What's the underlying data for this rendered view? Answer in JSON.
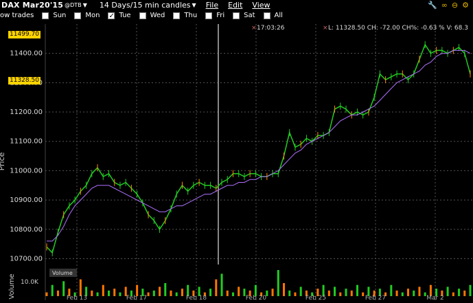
{
  "toolbar": {
    "title": "DAX Mar20'15",
    "exchange": "@DTB",
    "range": "14 Days/15 min candles",
    "menu_file": "File",
    "menu_edit": "Edit",
    "menu_view": "View"
  },
  "days": {
    "prefix": "ow trades",
    "sun": "Sun",
    "mon": "Mon",
    "tue": "Tue",
    "wed": "Wed",
    "thu": "Thu",
    "fri": "Fri",
    "sat": "Sat",
    "all": "All",
    "tue_checked": "✓"
  },
  "info": {
    "time": "17:03:26",
    "quote": "L: 11328.50 CH: -72.00 CH%: -0.63 % V: 68.3"
  },
  "labels": {
    "last_price": "11328.50",
    "top_price": "11499.70",
    "price_axis": "Price",
    "volume_axis": "Volume",
    "volume_legend": "Volume",
    "vol_tick": "10.0K"
  },
  "chart_data": {
    "type": "line",
    "ylabel": "Price",
    "ylim": [
      10680,
      11500
    ],
    "yticks": [
      10700,
      10800,
      10900,
      11000,
      11100,
      11200,
      11300,
      11400
    ],
    "ytick_labels": [
      "10700.00",
      "10800.00",
      "10900.00",
      "11000.00",
      "11100.00",
      "11200.00",
      "11300.00",
      "11400.00"
    ],
    "series": [
      {
        "name": "",
        "color": "#22cc22",
        "values": [
          10740,
          10720,
          10790,
          10850,
          10880,
          10900,
          10930,
          10950,
          10990,
          11010,
          10980,
          10990,
          10960,
          10950,
          10960,
          10940,
          10920,
          10890,
          10850,
          10830,
          10800,
          10830,
          10870,
          10920,
          10950,
          10930,
          10950,
          10960,
          10950,
          10950,
          10940,
          10960,
          10970,
          10990,
          10990,
          10980,
          10990,
          10990,
          10980,
          10980,
          10990,
          10990,
          11050,
          11130,
          11080,
          11090,
          11110,
          11100,
          11120,
          11120,
          11130,
          11210,
          11220,
          11210,
          11190,
          11200,
          11190,
          11200,
          11250,
          11330,
          11310,
          11320,
          11330,
          11330,
          11310,
          11330,
          11380,
          11430,
          11400,
          11410,
          11410,
          11400,
          11410,
          11420,
          11400,
          11330
        ]
      },
      {
        "name": "",
        "color": "#b070ff",
        "values": [
          10760,
          10760,
          10780,
          10810,
          10850,
          10880,
          10900,
          10920,
          10940,
          10950,
          10950,
          10950,
          10940,
          10930,
          10920,
          10910,
          10900,
          10890,
          10880,
          10870,
          10860,
          10860,
          10870,
          10880,
          10880,
          10890,
          10900,
          10910,
          10920,
          10920,
          10930,
          10940,
          10950,
          10950,
          10960,
          10960,
          10970,
          10970,
          10980,
          10980,
          10990,
          11000,
          11020,
          11040,
          11060,
          11070,
          11090,
          11100,
          11110,
          11120,
          11130,
          11150,
          11170,
          11180,
          11190,
          11190,
          11200,
          11210,
          11220,
          11240,
          11260,
          11280,
          11300,
          11310,
          11320,
          11330,
          11340,
          11360,
          11370,
          11390,
          11400,
          11400,
          11410,
          11410,
          11410,
          11400
        ]
      }
    ],
    "volume": [
      2,
      6,
      3,
      8,
      4,
      2,
      9,
      5,
      3,
      2,
      6,
      3,
      4,
      2,
      5,
      3,
      6,
      4,
      2,
      3,
      5,
      7,
      3,
      2,
      4,
      6,
      3,
      5,
      2,
      4,
      9,
      12,
      3,
      2,
      5,
      4,
      3,
      6,
      2,
      3,
      4,
      14,
      7,
      3,
      2,
      5,
      3,
      2,
      4,
      6,
      3,
      5,
      2,
      4,
      3,
      6,
      2,
      5,
      3,
      4,
      2,
      6,
      3,
      2,
      4,
      3,
      5,
      2,
      6,
      4,
      3,
      5,
      2,
      4,
      3,
      6
    ],
    "x_labels": [
      "Feb 13",
      "Feb 17",
      "Feb 18",
      "Feb 20",
      "Feb 25",
      "Feb 27",
      "Mar 2"
    ]
  }
}
